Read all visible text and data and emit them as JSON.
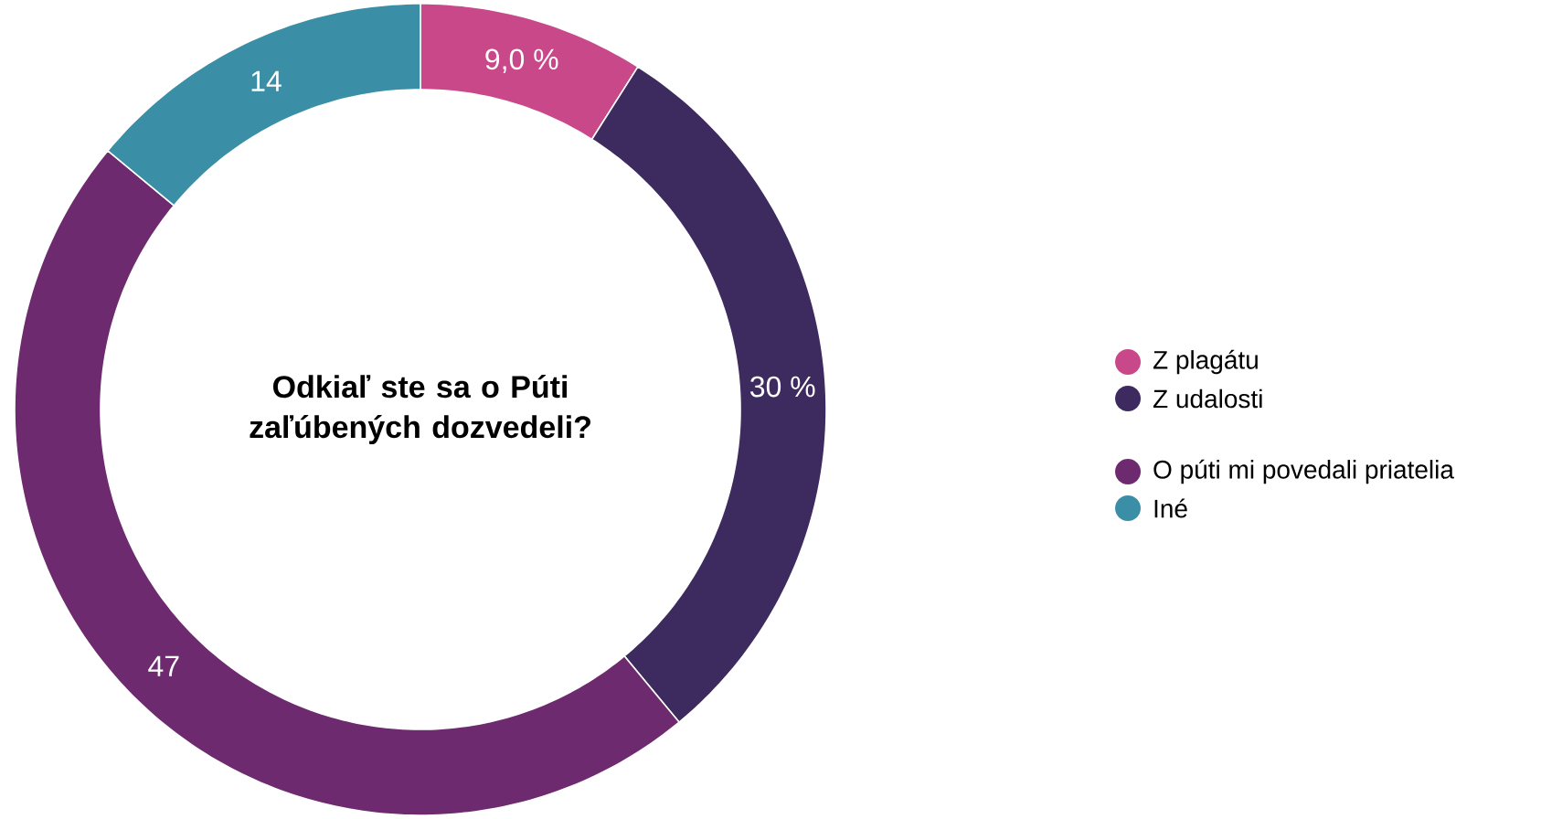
{
  "chart_data": {
    "type": "donut",
    "title": "Odkiaľ ste sa o Púti zaľúbených dozvedeli?",
    "categories": [
      "Z plagátu",
      "Z udalosti",
      null,
      "O púti mi povedali priatelia",
      "Iné"
    ],
    "values": [
      9.0,
      30,
      0,
      47,
      14
    ],
    "value_labels": [
      "9,0 %",
      "30 %",
      null,
      "47",
      "14"
    ],
    "colors": [
      "#c9488a",
      "#3d2a5e",
      "#3a4a7e",
      "#6e2a6e",
      "#3a8fa6"
    ],
    "legend": "right"
  }
}
